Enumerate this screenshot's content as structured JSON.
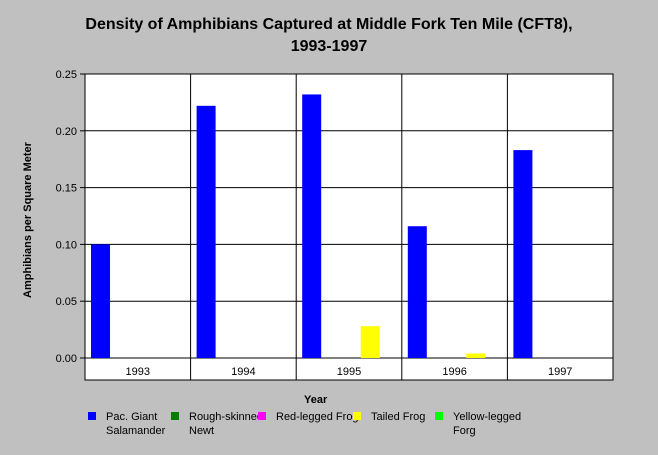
{
  "chart_data": {
    "type": "bar",
    "title_line1": "Density of Amphibians Captured at Middle Fork Ten Mile (CFT8),",
    "title_line2": "1993-1997",
    "xlabel": "Year",
    "ylabel": "Amphibians per Square Meter",
    "categories": [
      "1993",
      "1994",
      "1995",
      "1996",
      "1997"
    ],
    "ylim": [
      0,
      0.25
    ],
    "yticks": [
      "0.00",
      "0.05",
      "0.10",
      "0.15",
      "0.20",
      "0.25"
    ],
    "grid": true,
    "legend_placement": "bottom",
    "series": [
      {
        "name": "Pac. Giant Salamander",
        "color": "#0000ff",
        "values": [
          0.1,
          0.222,
          0.232,
          0.116,
          0.183
        ]
      },
      {
        "name": "Rough-skinned Newt",
        "color": "#008000",
        "values": [
          0,
          0,
          0,
          0,
          0
        ]
      },
      {
        "name": "Red-legged Frog",
        "color": "#ff00ff",
        "values": [
          0,
          0,
          0,
          0,
          0
        ]
      },
      {
        "name": "Tailed Frog",
        "color": "#ffff00",
        "values": [
          0,
          0,
          0.028,
          0.004,
          0
        ]
      },
      {
        "name": "Yellow-legged Forg",
        "color": "#00ff00",
        "values": [
          0,
          0,
          0,
          0,
          0
        ]
      }
    ]
  }
}
